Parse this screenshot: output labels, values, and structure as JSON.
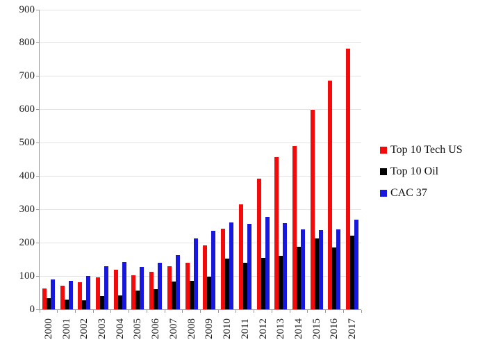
{
  "chart_data": {
    "type": "bar",
    "title": "",
    "xlabel": "",
    "ylabel": "",
    "categories": [
      "2000",
      "2001",
      "2002",
      "2003",
      "2004",
      "2005",
      "2006",
      "2007",
      "2008",
      "2009",
      "2010",
      "2011",
      "2012",
      "2013",
      "2014",
      "2015",
      "2016",
      "2017"
    ],
    "series": [
      {
        "name": "Top 10 Tech US",
        "color": "#f30b0b",
        "values": [
          62,
          70,
          82,
          97,
          120,
          102,
          113,
          130,
          140,
          192,
          243,
          315,
          393,
          458,
          490,
          600,
          688,
          783
        ]
      },
      {
        "name": "Top 10 Oil",
        "color": "#000000",
        "values": [
          34,
          30,
          28,
          39,
          42,
          57,
          60,
          83,
          85,
          98,
          152,
          140,
          155,
          160,
          187,
          213,
          185,
          222
        ]
      },
      {
        "name": "CAC 37",
        "color": "#1717dd",
        "values": [
          90,
          85,
          100,
          130,
          141,
          127,
          140,
          162,
          213,
          236,
          260,
          257,
          278,
          258,
          240,
          239,
          241,
          270
        ]
      }
    ],
    "ylim": [
      0,
      900
    ],
    "yticks": [
      0,
      100,
      200,
      300,
      400,
      500,
      600,
      700,
      800,
      900
    ],
    "grid": true,
    "legend_position": "right"
  },
  "colors": {
    "background": "#ffffff",
    "gridline": "#e4e4e4",
    "axis": "#9a9a9a",
    "text": "#1c1c1c"
  }
}
